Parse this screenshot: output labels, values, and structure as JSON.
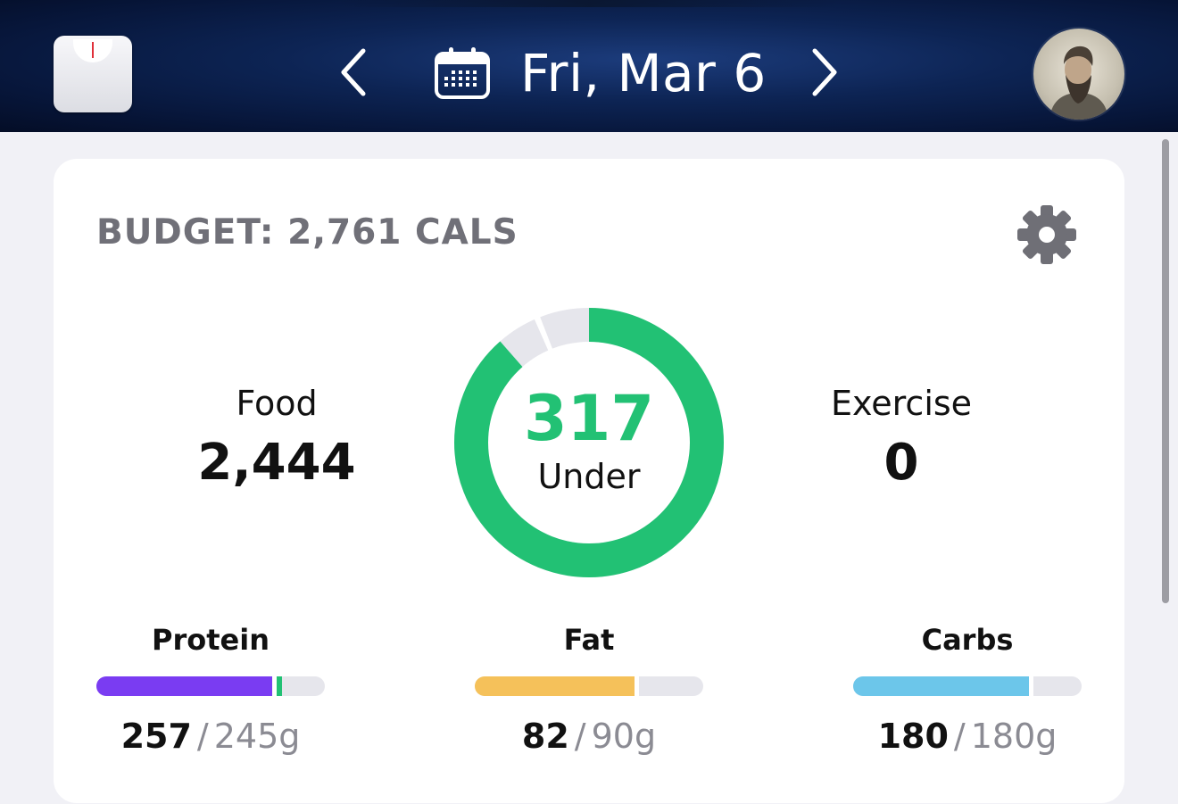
{
  "header": {
    "date_label": "Fri, Mar 6",
    "icons": {
      "scale": "scale-icon",
      "prev": "chevron-left-icon",
      "calendar": "calendar-icon",
      "next": "chevron-right-icon",
      "avatar": "user-avatar"
    }
  },
  "budget": {
    "title": "BUDGET: 2,761 CALS",
    "settings_icon": "gear-icon",
    "food": {
      "label": "Food",
      "value": "2,444"
    },
    "exercise": {
      "label": "Exercise",
      "value": "0"
    },
    "remaining": {
      "value": "317",
      "label": "Under"
    },
    "ring": {
      "consumed_fraction": 0.885,
      "consumed_color": "#22c174",
      "track_color": "#e6e6ec"
    }
  },
  "macros": [
    {
      "name": "Protein",
      "eaten": "257",
      "goal": "245g",
      "fill_fraction": 0.77,
      "color": "#7a3cf2",
      "overage_color": "#22c174"
    },
    {
      "name": "Fat",
      "eaten": "82",
      "goal": "90g",
      "fill_fraction": 0.7,
      "color": "#f5c15a"
    },
    {
      "name": "Carbs",
      "eaten": "180",
      "goal": "180g",
      "fill_fraction": 0.77,
      "color": "#6cc6ea"
    }
  ],
  "colors": {
    "accent_green": "#22c174",
    "macro_track": "#e6e6ec",
    "muted_text": "#707078"
  }
}
